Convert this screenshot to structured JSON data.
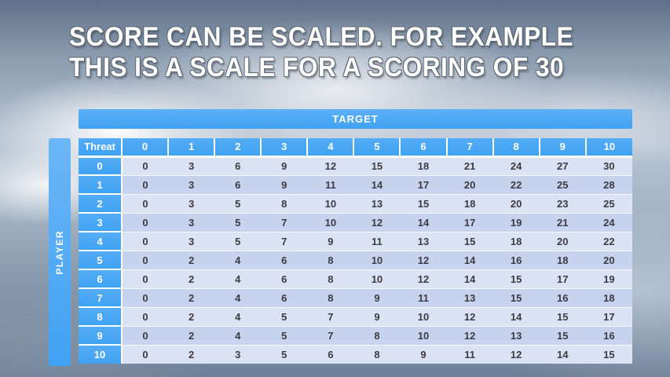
{
  "title": {
    "line1": "SCORE CAN BE SCALED. FOR EXAMPLE",
    "line2": "THIS IS A SCALE FOR A SCORING OF 30"
  },
  "table": {
    "col_axis_label": "TARGET",
    "row_axis_label": "PLAYER",
    "corner_label": "Threat",
    "col_headers": [
      "0",
      "1",
      "2",
      "3",
      "4",
      "5",
      "6",
      "7",
      "8",
      "9",
      "10"
    ],
    "rows": [
      {
        "label": "0",
        "values": [
          0,
          3,
          6,
          9,
          12,
          15,
          18,
          21,
          24,
          27,
          30
        ]
      },
      {
        "label": "1",
        "values": [
          0,
          3,
          6,
          9,
          11,
          14,
          17,
          20,
          22,
          25,
          28
        ]
      },
      {
        "label": "2",
        "values": [
          0,
          3,
          5,
          8,
          10,
          13,
          15,
          18,
          20,
          23,
          25
        ]
      },
      {
        "label": "3",
        "values": [
          0,
          3,
          5,
          7,
          10,
          12,
          14,
          17,
          19,
          21,
          24
        ]
      },
      {
        "label": "4",
        "values": [
          0,
          3,
          5,
          7,
          9,
          11,
          13,
          15,
          18,
          20,
          22
        ]
      },
      {
        "label": "5",
        "values": [
          0,
          2,
          4,
          6,
          8,
          10,
          12,
          14,
          16,
          18,
          20
        ]
      },
      {
        "label": "6",
        "values": [
          0,
          2,
          4,
          6,
          8,
          10,
          12,
          14,
          15,
          17,
          19
        ]
      },
      {
        "label": "7",
        "values": [
          0,
          2,
          4,
          6,
          8,
          9,
          11,
          13,
          15,
          16,
          18
        ]
      },
      {
        "label": "8",
        "values": [
          0,
          2,
          4,
          5,
          7,
          9,
          10,
          12,
          14,
          15,
          17
        ]
      },
      {
        "label": "9",
        "values": [
          0,
          2,
          4,
          5,
          7,
          8,
          10,
          12,
          13,
          15,
          16
        ]
      },
      {
        "label": "10",
        "values": [
          0,
          2,
          3,
          5,
          6,
          8,
          9,
          11,
          12,
          14,
          15
        ]
      }
    ]
  },
  "colors": {
    "header_blue": "#3fa2f3",
    "band_light": "#dbe2f4",
    "band_dark": "#c7d2ec",
    "title_text": "#ffffff",
    "title_outline": "#5c6670",
    "cell_text": "#3b3b44"
  }
}
